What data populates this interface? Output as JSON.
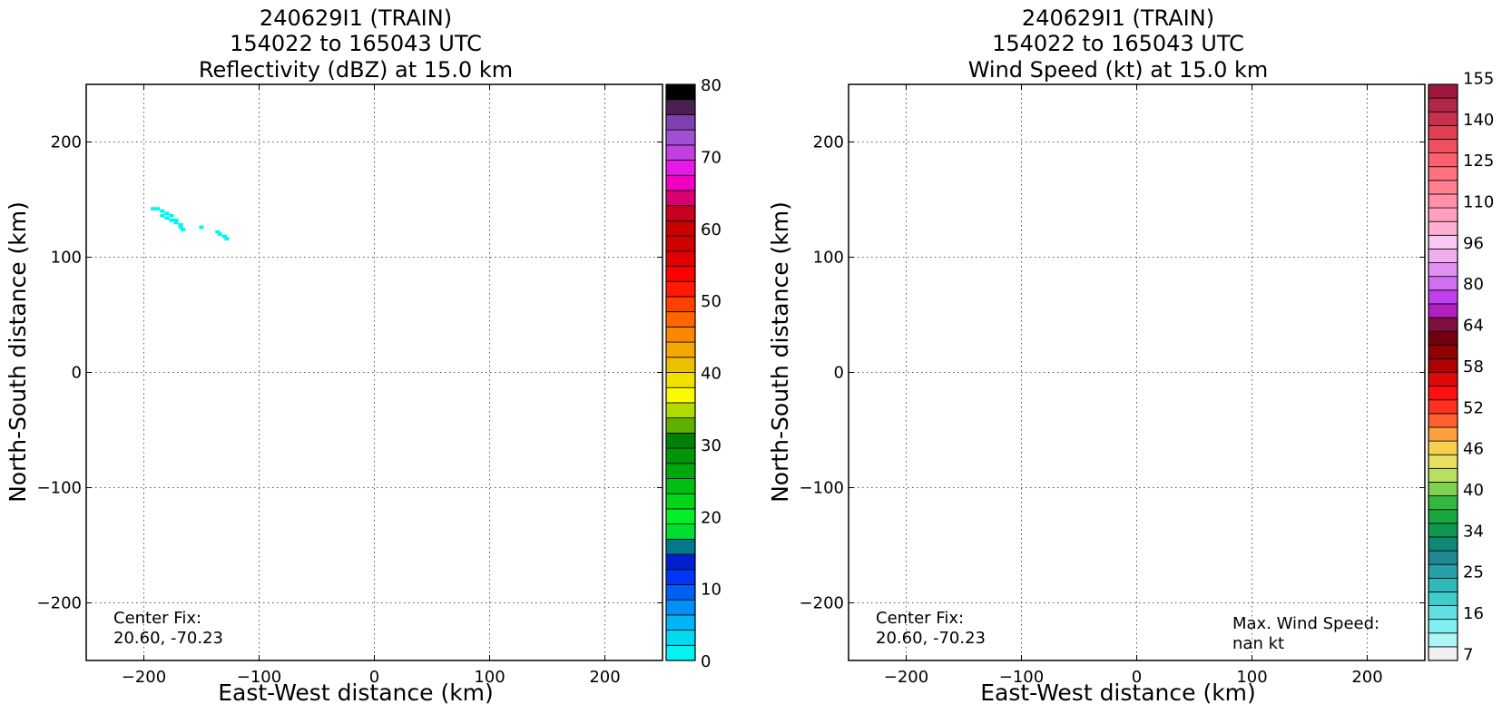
{
  "chart_data": [
    {
      "type": "heatmap",
      "title_lines": [
        "240629I1 (TRAIN)",
        "154022 to 165043 UTC",
        "Reflectivity (dBZ) at 15.0 km"
      ],
      "xlabel": "East-West distance (km)",
      "ylabel": "North-South distance (km)",
      "xlim": [
        -250,
        250
      ],
      "ylim": [
        -250,
        250
      ],
      "xticks": [
        -200,
        -100,
        0,
        100,
        200
      ],
      "yticks": [
        -200,
        -100,
        0,
        100,
        200
      ],
      "grid": true,
      "annotation_lines": [
        "Center Fix:",
        "20.60, -70.23"
      ],
      "colorbar": {
        "min": 0,
        "max": 80,
        "tick_values": [
          0,
          10,
          20,
          30,
          40,
          50,
          60,
          70,
          80
        ],
        "colors": [
          "#00f5f0",
          "#00daf0",
          "#00b5f5",
          "#0090f5",
          "#0060f5",
          "#0035f5",
          "#0020d0",
          "#007a8a",
          "#00df30",
          "#00f028",
          "#00d518",
          "#00bf10",
          "#00a810",
          "#009608",
          "#008008",
          "#60b000",
          "#b0da00",
          "#fafa00",
          "#f0e000",
          "#ebc000",
          "#f5a800",
          "#f88800",
          "#ff6600",
          "#ff4000",
          "#ff1a00",
          "#ff0000",
          "#e00000",
          "#d00000",
          "#c80000",
          "#c80020",
          "#d80070",
          "#f000c0",
          "#e818e8",
          "#c040e0",
          "#a050d0",
          "#8040b0",
          "#4a2050",
          "#000000"
        ]
      },
      "points": [
        {
          "x": -192,
          "y": 142
        },
        {
          "x": -188,
          "y": 142
        },
        {
          "x": -184,
          "y": 140
        },
        {
          "x": -184,
          "y": 136
        },
        {
          "x": -180,
          "y": 138
        },
        {
          "x": -180,
          "y": 134
        },
        {
          "x": -176,
          "y": 132
        },
        {
          "x": -176,
          "y": 136
        },
        {
          "x": -172,
          "y": 130
        },
        {
          "x": -172,
          "y": 132
        },
        {
          "x": -168,
          "y": 128
        },
        {
          "x": -168,
          "y": 126
        },
        {
          "x": -166,
          "y": 124
        },
        {
          "x": -150,
          "y": 126
        },
        {
          "x": -136,
          "y": 122
        },
        {
          "x": -134,
          "y": 120
        },
        {
          "x": -130,
          "y": 118
        },
        {
          "x": -128,
          "y": 116
        }
      ]
    },
    {
      "type": "heatmap",
      "title_lines": [
        "240629I1 (TRAIN)",
        "154022 to 165043 UTC",
        "Wind Speed (kt) at 15.0 km"
      ],
      "xlabel": "East-West distance (km)",
      "ylabel": "North-South distance (km)",
      "xlim": [
        -250,
        250
      ],
      "ylim": [
        -250,
        250
      ],
      "xticks": [
        -200,
        -100,
        0,
        100,
        200
      ],
      "yticks": [
        -200,
        -100,
        0,
        100,
        200
      ],
      "grid": true,
      "annotation_lines": [
        "Center Fix:",
        "20.60, -70.23"
      ],
      "annotation2_lines": [
        "Max. Wind Speed:",
        "nan kt"
      ],
      "colorbar": {
        "tick_labels": [
          "7",
          "16",
          "25",
          "34",
          "40",
          "46",
          "52",
          "58",
          "64",
          "80",
          "96",
          "110",
          "125",
          "140",
          "155"
        ],
        "tick_label_every": 3,
        "colors": [
          "#f0f0f0",
          "#b0f5f5",
          "#80eeee",
          "#60e0e0",
          "#40cccc",
          "#30b8b8",
          "#28a0a8",
          "#208890",
          "#108878",
          "#109850",
          "#18a840",
          "#30b840",
          "#80d050",
          "#b8e060",
          "#e8e060",
          "#f8d050",
          "#ffa040",
          "#ff6030",
          "#ff3020",
          "#ff1010",
          "#e00808",
          "#b00000",
          "#900000",
          "#700010",
          "#801040",
          "#b020c0",
          "#c040f0",
          "#d070f0",
          "#e090f0",
          "#f0b0f0",
          "#f8c8f0",
          "#ffb0d0",
          "#ffa0c0",
          "#ff90a8",
          "#ff8090",
          "#ff7080",
          "#ff6070",
          "#f05060",
          "#e04050",
          "#c83050",
          "#b02848",
          "#a01840"
        ]
      },
      "points": []
    }
  ]
}
